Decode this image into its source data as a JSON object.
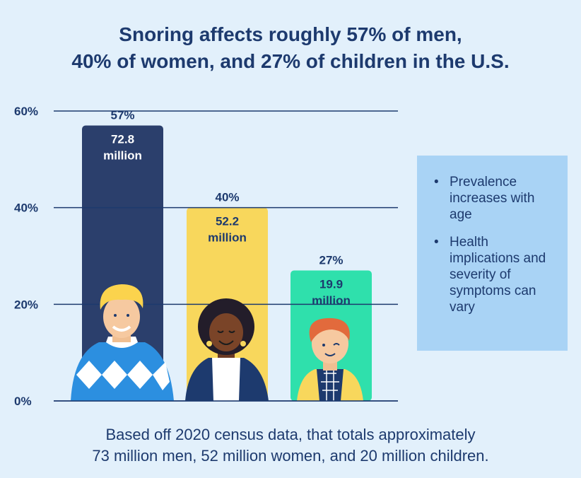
{
  "title_line1": "Snoring affects roughly 57% of men,",
  "title_line2": "40% of women, and 27% of children in the U.S.",
  "chart_data": {
    "type": "bar",
    "categories": [
      "Men",
      "Women",
      "Children"
    ],
    "values": [
      57,
      40,
      27
    ],
    "value_labels": [
      "57%",
      "40%",
      "27%"
    ],
    "population_labels": [
      [
        "72.8",
        "million"
      ],
      [
        "52.2",
        "million"
      ],
      [
        "19.9",
        "million"
      ]
    ],
    "colors": [
      "#2b3f6c",
      "#f8d75c",
      "#2fe0ac"
    ],
    "yticks": [
      "0%",
      "20%",
      "40%",
      "60%"
    ],
    "ytick_values": [
      0,
      20,
      40,
      60
    ],
    "ylim": [
      0,
      60
    ],
    "xlabel": "",
    "ylabel": "",
    "grid": true
  },
  "sidebar": {
    "bullet": "•",
    "items": [
      "Prevalence increases with age",
      "Health implications and severity of symptoms can vary"
    ]
  },
  "footer_line1": "Based off 2020 census data, that totals approximately",
  "footer_line2": "73 million men, 52 million women, and 20 million children."
}
